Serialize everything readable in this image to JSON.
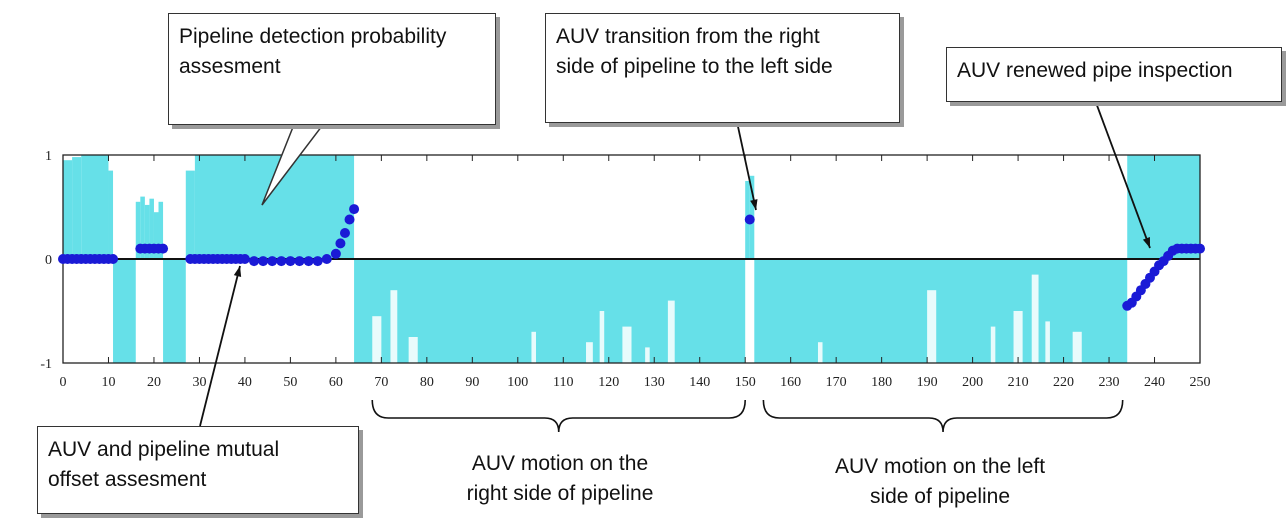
{
  "chart_data": {
    "type": "area",
    "xlim": [
      0,
      250
    ],
    "ylim": [
      -1,
      1
    ],
    "xticks": [
      0,
      10,
      20,
      30,
      40,
      50,
      60,
      70,
      80,
      90,
      100,
      110,
      120,
      130,
      140,
      150,
      160,
      170,
      180,
      190,
      200,
      210,
      220,
      230,
      240,
      250
    ],
    "yticks": [
      {
        "value": 1,
        "label": "1"
      },
      {
        "value": 0,
        "label": "0"
      },
      {
        "value": -1,
        "label": "-1"
      }
    ],
    "colors": {
      "probability": "#66e0e8",
      "offset": "#1a1ad6",
      "axes": "#222222"
    },
    "series": [
      {
        "kind": "area",
        "segments": [
          {
            "x0": 0,
            "x1": 2,
            "y": 0.95
          },
          {
            "x0": 2,
            "x1": 4,
            "y": 0.98
          },
          {
            "x0": 4,
            "x1": 10,
            "y": 1.0
          },
          {
            "x0": 10,
            "x1": 11,
            "y": 0.85
          },
          {
            "x0": 11,
            "x1": 16,
            "y": -1.0
          },
          {
            "x0": 16,
            "x1": 17,
            "y": 0.55
          },
          {
            "x0": 17,
            "x1": 18,
            "y": 0.6
          },
          {
            "x0": 18,
            "x1": 19,
            "y": 0.52
          },
          {
            "x0": 19,
            "x1": 20,
            "y": 0.58
          },
          {
            "x0": 20,
            "x1": 21,
            "y": 0.45
          },
          {
            "x0": 21,
            "x1": 22,
            "y": 0.55
          },
          {
            "x0": 22,
            "x1": 27,
            "y": -1.0
          },
          {
            "x0": 27,
            "x1": 29,
            "y": 0.85
          },
          {
            "x0": 29,
            "x1": 64,
            "y": 1.0
          },
          {
            "x0": 64,
            "x1": 150,
            "y": -1.0
          },
          {
            "x0": 150,
            "x1": 151,
            "y": 0.75
          },
          {
            "x0": 151,
            "x1": 152,
            "y": 0.8
          },
          {
            "x0": 152,
            "x1": 234,
            "y": -1.0
          },
          {
            "x0": 234,
            "x1": 250,
            "y": 1.0
          }
        ]
      },
      {
        "kind": "points",
        "x": [
          0,
          1,
          2,
          3,
          4,
          5,
          6,
          7,
          8,
          9,
          10,
          11,
          17,
          18,
          19,
          20,
          21,
          22,
          28,
          29,
          30,
          31,
          32,
          33,
          34,
          35,
          36,
          37,
          38,
          39,
          40,
          42,
          44,
          46,
          48,
          50,
          52,
          54,
          56,
          58,
          60,
          61,
          62,
          63,
          64,
          151,
          234,
          235,
          236,
          237,
          238,
          239,
          240,
          241,
          242,
          243,
          244,
          245,
          246,
          247,
          248,
          249,
          250
        ],
        "y": [
          0,
          0,
          0,
          0,
          0,
          0,
          0,
          0,
          0,
          0,
          0,
          0,
          0.1,
          0.1,
          0.1,
          0.1,
          0.1,
          0.1,
          0,
          0,
          0,
          0,
          0,
          0,
          0,
          0,
          0,
          0,
          0,
          0,
          0,
          -0.02,
          -0.02,
          -0.02,
          -0.02,
          -0.02,
          -0.02,
          -0.02,
          -0.02,
          0,
          0.05,
          0.15,
          0.25,
          0.38,
          0.48,
          0.38,
          -0.45,
          -0.42,
          -0.36,
          -0.3,
          -0.24,
          -0.18,
          -0.12,
          -0.06,
          -0.02,
          0.03,
          0.08,
          0.1,
          0.1,
          0.1,
          0.1,
          0.1,
          0.1
        ]
      }
    ],
    "annotations": [
      {
        "text": "Pipeline detection probability assesment",
        "line1": "Pipeline detection probability",
        "line2": "assesment"
      },
      {
        "text": "AUV transition from the right side of pipeline to the left side",
        "line1": "AUV transition from the right",
        "line2": "side of pipeline to the left side"
      },
      {
        "text": "AUV renewed pipe inspection",
        "line1": "AUV renewed pipe inspection",
        "line2": ""
      },
      {
        "text": "AUV and pipeline mutual offset assesment",
        "line1": "AUV and pipeline mutual",
        "line2": "offset assesment"
      },
      {
        "text": "AUV motion on the right side of pipeline",
        "line1": "AUV motion on the",
        "line2": "right side of pipeline"
      },
      {
        "text": "AUV motion on the left side of pipeline",
        "line1": "AUV motion on the left",
        "line2": "side of pipeline"
      }
    ]
  }
}
